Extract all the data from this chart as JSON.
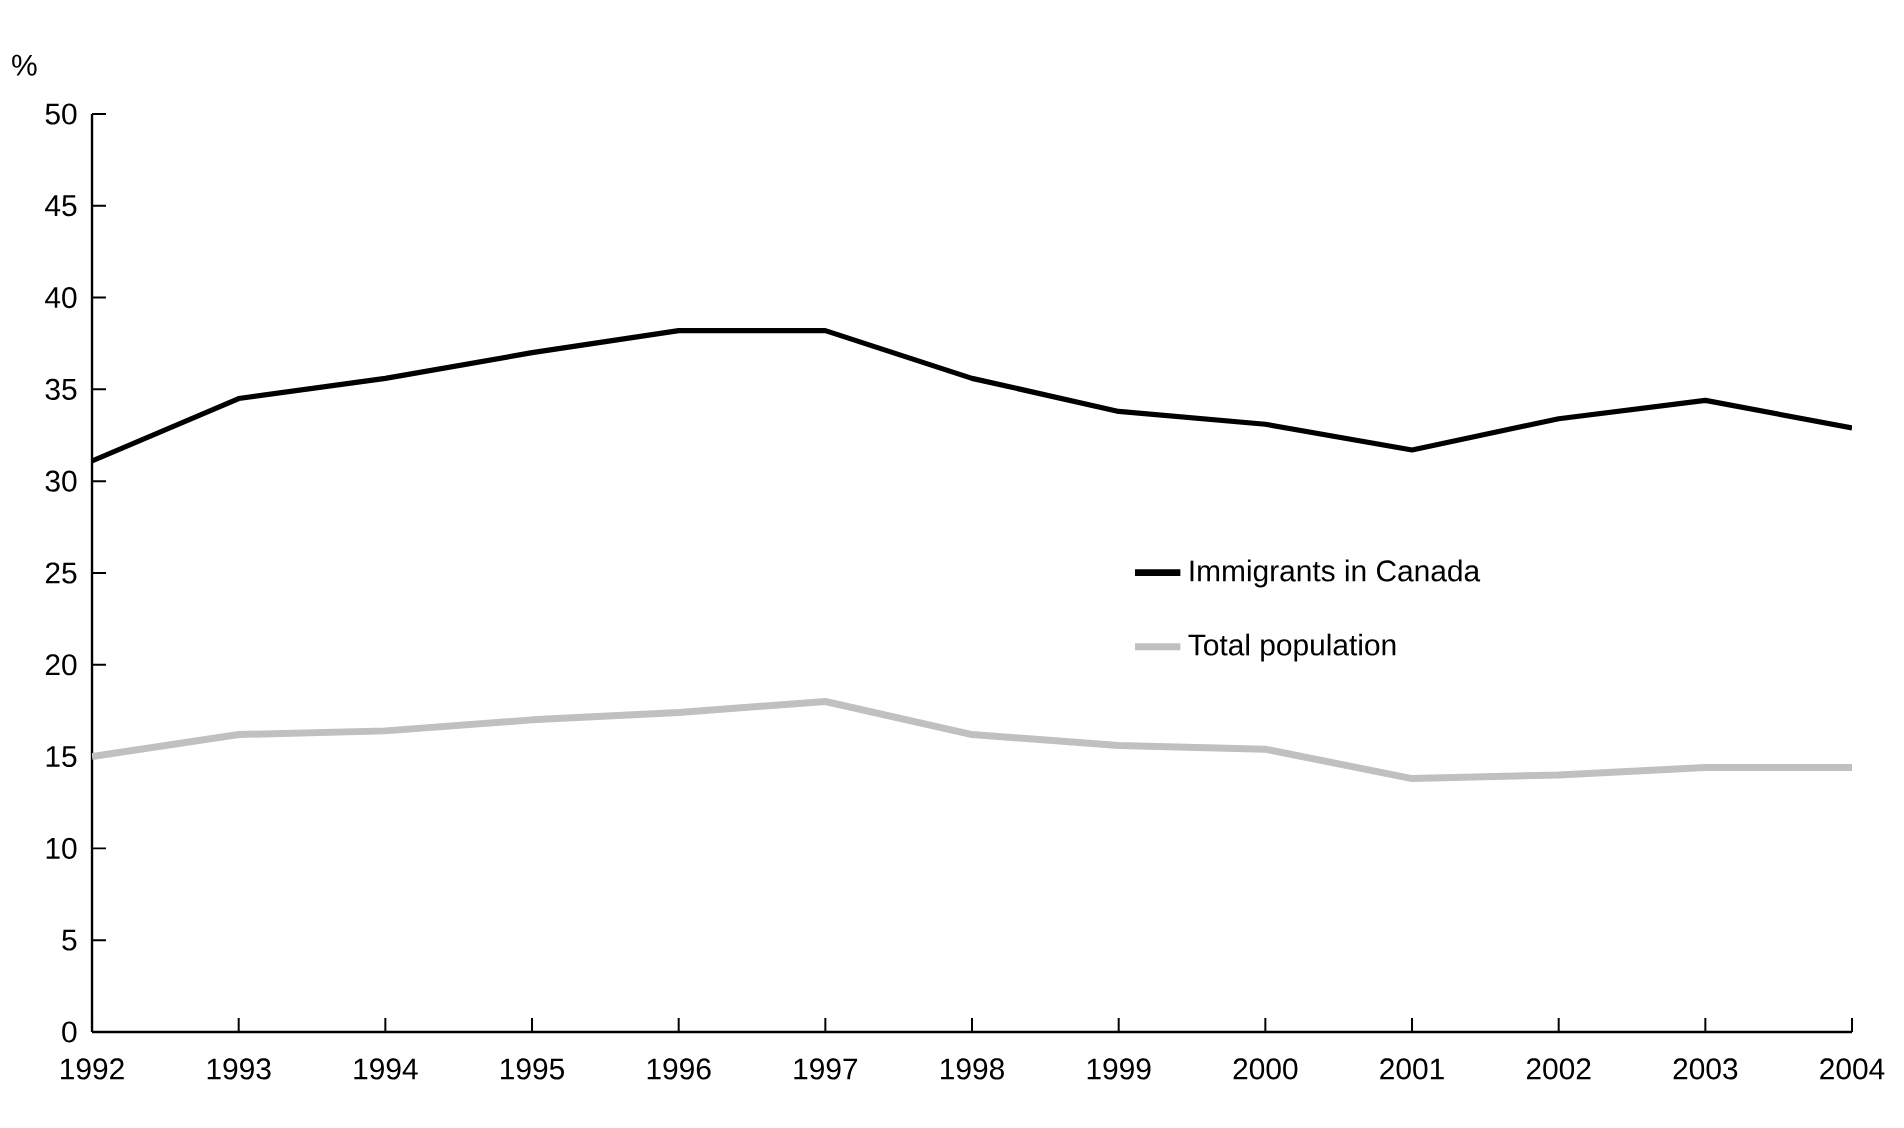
{
  "chart_data": {
    "type": "line",
    "ylabel": "%",
    "categories": [
      "1992",
      "1993",
      "1994",
      "1995",
      "1996",
      "1997",
      "1998",
      "1999",
      "2000",
      "2001",
      "2002",
      "2003",
      "2004"
    ],
    "ylim": [
      0,
      50
    ],
    "yticks": [
      0,
      5,
      10,
      15,
      20,
      25,
      30,
      35,
      40,
      45,
      50
    ],
    "series": [
      {
        "name": "Immigrants in Canada",
        "color": "#000000",
        "values": [
          31.1,
          34.5,
          35.6,
          37.0,
          38.2,
          38.2,
          35.6,
          33.8,
          33.1,
          31.7,
          33.4,
          34.4,
          32.9
        ]
      },
      {
        "name": "Total population",
        "color": "#c0c0c0",
        "values": [
          15.0,
          16.2,
          16.4,
          17.0,
          17.4,
          18.0,
          16.2,
          15.6,
          15.4,
          13.8,
          14.0,
          14.4,
          14.4
        ]
      }
    ],
    "legend": "right",
    "grid": false,
    "marker": "none",
    "line_style": "solid"
  }
}
